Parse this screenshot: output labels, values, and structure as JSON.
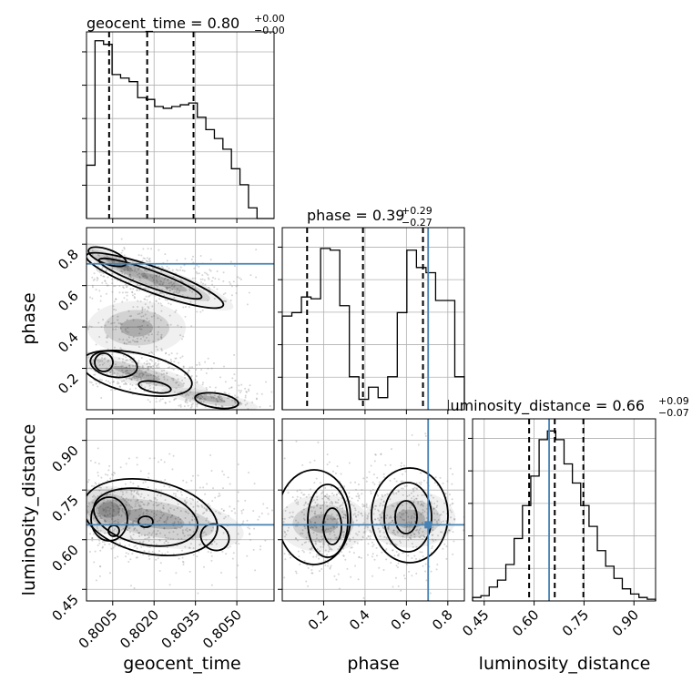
{
  "chart_data": {
    "type": "corner",
    "colors": {
      "truth": "#4682b4",
      "line": "#000000",
      "grid": "#b0b0b0",
      "points": "#888888"
    },
    "parameters": [
      {
        "name": "geocent_time",
        "label": "geocent_time",
        "title": "geocent_time = 0.80",
        "title_sup": "+0.00",
        "title_sub": "−0.00",
        "range": [
          0.79955,
          0.80635
        ],
        "ticks": [
          0.8005,
          0.802,
          0.8035,
          0.805
        ],
        "tick_labels": [
          "0.8005",
          "0.8020",
          "0.8035",
          "0.8050"
        ],
        "quantiles": [
          0.80037,
          0.80175,
          0.80343
        ],
        "truth": null,
        "hist_max": 1.05,
        "hist": [
          0.3,
          1.0,
          0.98,
          0.81,
          0.79,
          0.77,
          0.68,
          0.67,
          0.63,
          0.62,
          0.63,
          0.64,
          0.65,
          0.57,
          0.5,
          0.45,
          0.39,
          0.28,
          0.19,
          0.06,
          0.0,
          0.0
        ]
      },
      {
        "name": "phase",
        "label": "phase",
        "title": "phase = 0.39",
        "title_sup": "+0.29",
        "title_sub": "−0.27",
        "range": [
          0.0,
          0.88
        ],
        "ticks": [
          0.2,
          0.4,
          0.6,
          0.8
        ],
        "tick_labels": [
          "0.2",
          "0.4",
          "0.6",
          "0.8"
        ],
        "quantiles": [
          0.12,
          0.39,
          0.68
        ],
        "truth": 0.705,
        "hist_max": 1.05,
        "hist": [
          0.54,
          0.56,
          0.65,
          0.64,
          0.93,
          0.92,
          0.6,
          0.19,
          0.06,
          0.13,
          0.07,
          0.19,
          0.56,
          0.92,
          0.82,
          0.79,
          0.63,
          0.63,
          0.19
        ]
      },
      {
        "name": "luminosity_distance",
        "label": "luminosity_distance",
        "title": "luminosity_distance = 0.66",
        "title_sup": "+0.09",
        "title_sub": "−0.07",
        "range": [
          0.415,
          0.965
        ],
        "ticks": [
          0.45,
          0.6,
          0.75,
          0.9
        ],
        "tick_labels": [
          "0.45",
          "0.60",
          "0.75",
          "0.90"
        ],
        "quantiles": [
          0.585,
          0.662,
          0.748
        ],
        "truth": 0.645,
        "hist_max": 1.05,
        "hist": [
          0.02,
          0.03,
          0.08,
          0.12,
          0.21,
          0.36,
          0.55,
          0.72,
          0.93,
          0.98,
          0.93,
          0.79,
          0.68,
          0.55,
          0.43,
          0.29,
          0.2,
          0.13,
          0.07,
          0.04,
          0.02,
          0.01
        ]
      }
    ],
    "axis_labels": {
      "y_row2": "phase",
      "y_row3": "luminosity_distance",
      "x_col1": "geocent_time",
      "x_col2": "phase",
      "x_col3": "luminosity_distance"
    }
  }
}
